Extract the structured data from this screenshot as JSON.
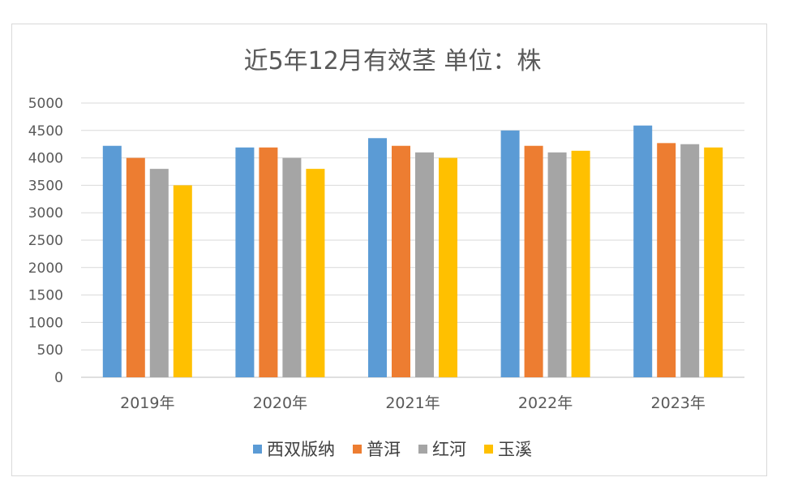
{
  "chart_data": {
    "type": "bar",
    "title": "近5年12月有效茎  单位：株",
    "categories": [
      "2019年",
      "2020年",
      "2021年",
      "2022年",
      "2023年"
    ],
    "ylim": [
      0,
      5000
    ],
    "yticks": [
      0,
      500,
      1000,
      1500,
      2000,
      2500,
      3000,
      3500,
      4000,
      4500,
      5000
    ],
    "grid": true,
    "legend_position": "bottom",
    "series": [
      {
        "name": "西双版纳",
        "color": "#5b9bd5",
        "values": [
          4220,
          4190,
          4360,
          4500,
          4590
        ]
      },
      {
        "name": "普洱",
        "color": "#ed7d31",
        "values": [
          4000,
          4190,
          4220,
          4220,
          4270
        ]
      },
      {
        "name": "红河",
        "color": "#a5a5a5",
        "values": [
          3800,
          4000,
          4100,
          4100,
          4250
        ]
      },
      {
        "name": "玉溪",
        "color": "#ffc000",
        "values": [
          3500,
          3800,
          4000,
          4130,
          4190
        ]
      }
    ]
  }
}
